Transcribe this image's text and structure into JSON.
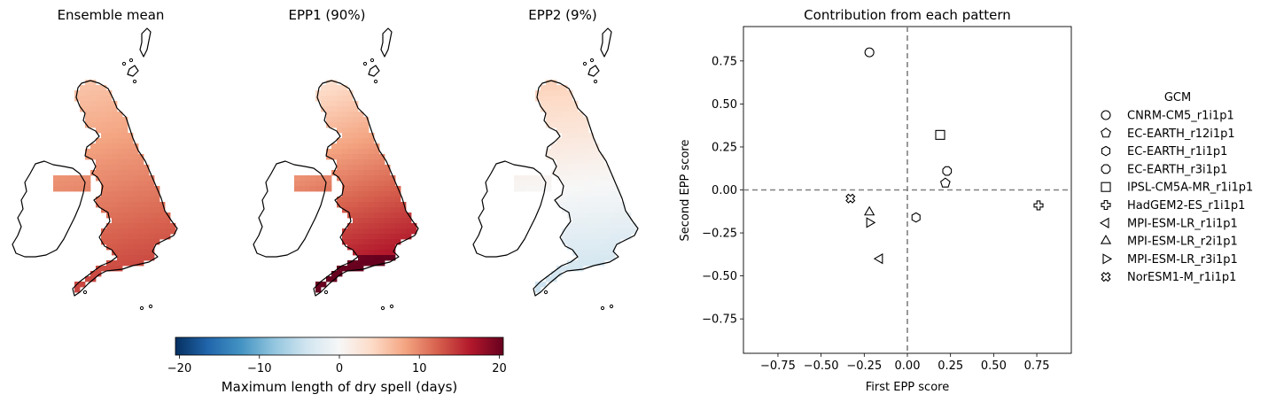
{
  "maps": [
    {
      "title": "Ensemble mean",
      "mode": "mean"
    },
    {
      "title": "EPP1 (90%)",
      "mode": "epp1"
    },
    {
      "title": "EPP2 (9%)",
      "mode": "epp2"
    }
  ],
  "colorbar": {
    "label": "Maximum length of dry spell (days)",
    "colormap": "RdBu_r",
    "vmin": -20.5,
    "vmax": 20.5,
    "ticks": [
      -20,
      -10,
      0,
      10,
      20
    ],
    "tick_labels": [
      "−20",
      "−10",
      "0",
      "10",
      "20"
    ]
  },
  "chart_data": {
    "type": "scatter",
    "title": "Contribution from each pattern",
    "xlabel": "First EPP score",
    "ylabel": "Second EPP score",
    "xlim": [
      -0.95,
      0.95
    ],
    "ylim": [
      -0.95,
      0.95
    ],
    "xticks": [
      -0.75,
      -0.5,
      -0.25,
      0.0,
      0.25,
      0.5,
      0.75
    ],
    "xtick_labels": [
      "−0.75",
      "−0.50",
      "−0.25",
      "0.00",
      "0.25",
      "0.50",
      "0.75"
    ],
    "yticks": [
      -0.75,
      -0.5,
      -0.25,
      0.0,
      0.25,
      0.5,
      0.75
    ],
    "ytick_labels": [
      "−0.75",
      "−0.50",
      "−0.25",
      "0.00",
      "0.25",
      "0.50",
      "0.75"
    ],
    "reference_lines": {
      "x": 0,
      "y": 0,
      "style": "dashed",
      "color": "#808080"
    },
    "legend_title": "GCM",
    "legend_placement": "right, outside",
    "series": [
      {
        "name": "CNRM-CM5_r1i1p1",
        "marker": "circle",
        "x": -0.22,
        "y": 0.8
      },
      {
        "name": "EC-EARTH_r12i1p1",
        "marker": "pentagon",
        "x": 0.22,
        "y": 0.04
      },
      {
        "name": "EC-EARTH_r1i1p1",
        "marker": "hexagon",
        "x": 0.05,
        "y": -0.16
      },
      {
        "name": "EC-EARTH_r3i1p1",
        "marker": "octagon",
        "x": 0.23,
        "y": 0.11
      },
      {
        "name": "IPSL-CM5A-MR_r1i1p1",
        "marker": "square",
        "x": 0.19,
        "y": 0.32
      },
      {
        "name": "HadGEM2-ES_r1i1p1",
        "marker": "plus",
        "x": 0.76,
        "y": -0.09
      },
      {
        "name": "MPI-ESM-LR_r1i1p1",
        "marker": "triangle-left",
        "x": -0.16,
        "y": -0.4
      },
      {
        "name": "MPI-ESM-LR_r2i1p1",
        "marker": "triangle-up",
        "x": -0.22,
        "y": -0.13
      },
      {
        "name": "MPI-ESM-LR_r3i1p1",
        "marker": "triangle-right",
        "x": -0.22,
        "y": -0.19
      },
      {
        "name": "NorESM1-M_r1i1p1",
        "marker": "x-filled",
        "x": -0.33,
        "y": -0.05
      }
    ]
  }
}
